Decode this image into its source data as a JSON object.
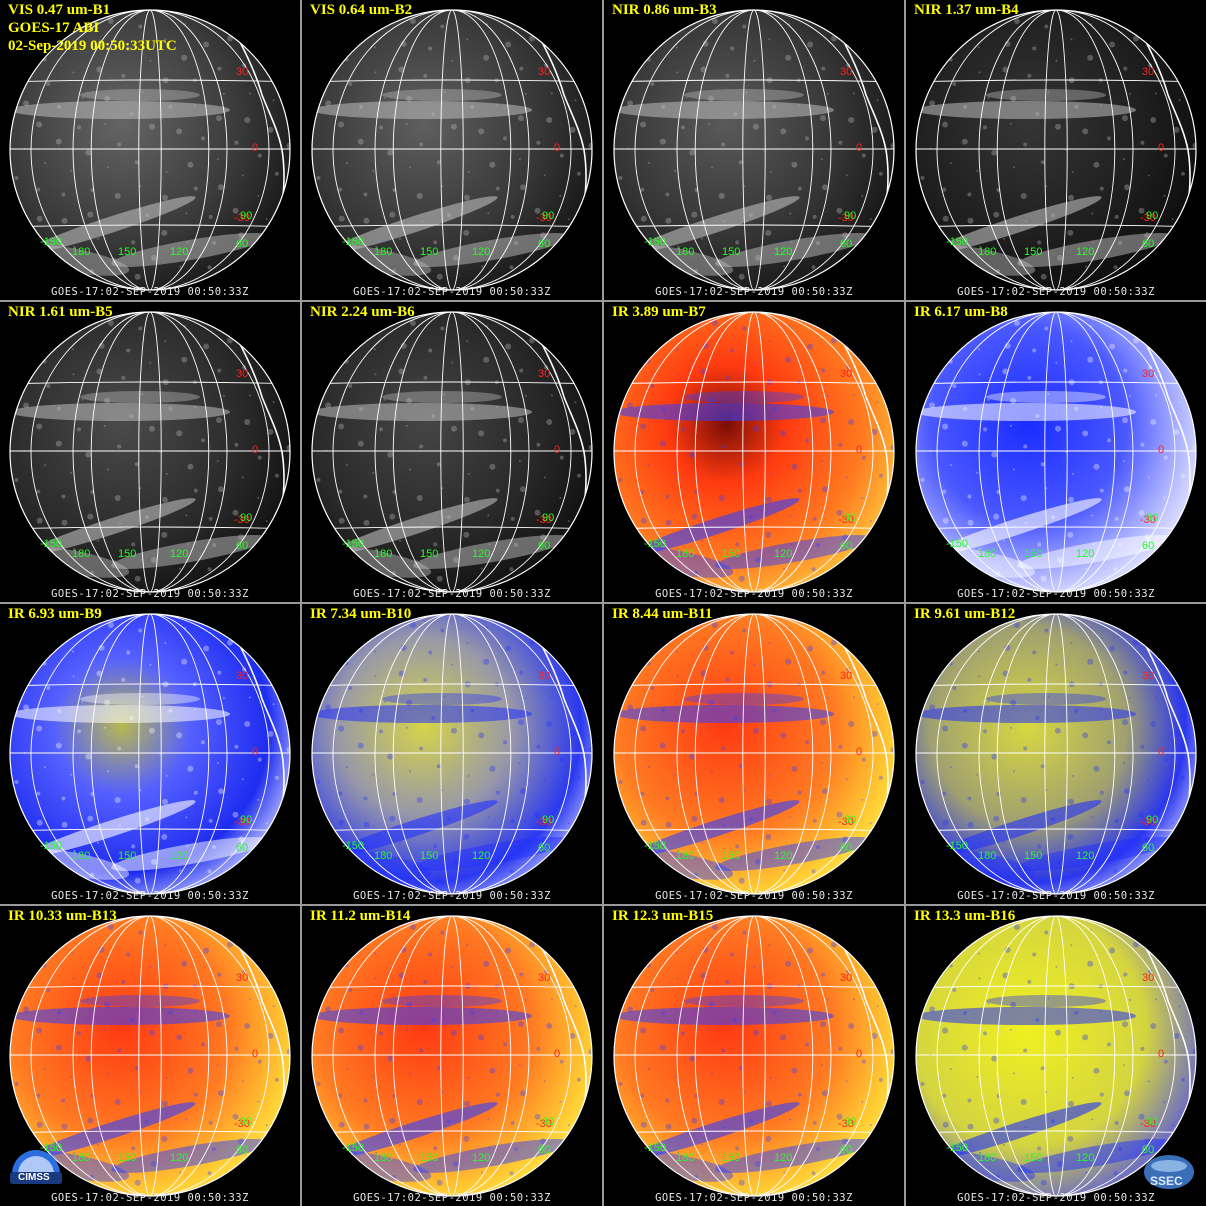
{
  "header": {
    "satellite": "GOES-17 ABI",
    "datetime": "02-Sep-2019 00:50:33UTC"
  },
  "stamp": "GOES-17:02-SEP-2019 00:50:33Z",
  "gridlines": {
    "lat_labels": [
      "30",
      "0",
      "-30"
    ],
    "lon_labels": [
      "-150",
      "180",
      "150",
      "120",
      "60",
      "90"
    ]
  },
  "panels": [
    {
      "label": "VIS 0.47 um-B1",
      "scheme": "gray",
      "brightness": 0.95
    },
    {
      "label": "VIS 0.64 um-B2",
      "scheme": "gray",
      "brightness": 0.9
    },
    {
      "label": "NIR 0.86 um-B3",
      "scheme": "gray",
      "brightness": 0.85
    },
    {
      "label": "NIR 1.37 um-B4",
      "scheme": "gray",
      "brightness": 0.5
    },
    {
      "label": "NIR 1.61 um-B5",
      "scheme": "gray",
      "brightness": 0.7
    },
    {
      "label": "NIR 2.24 um-B6",
      "scheme": "gray",
      "brightness": 0.65
    },
    {
      "label": "IR 3.89 um-B7",
      "scheme": "hot",
      "brightness": 1
    },
    {
      "label": "IR 6.17 um-B8",
      "scheme": "wv-white",
      "brightness": 1
    },
    {
      "label": "IR 6.93 um-B9",
      "scheme": "wv-blue",
      "brightness": 1
    },
    {
      "label": "IR 7.34 um-B10",
      "scheme": "wv-yellow",
      "brightness": 1
    },
    {
      "label": "IR 8.44 um-B11",
      "scheme": "hot-orange",
      "brightness": 1
    },
    {
      "label": "IR 9.61 um-B12",
      "scheme": "yellow-blue",
      "brightness": 1
    },
    {
      "label": "IR 10.33 um-B13",
      "scheme": "hot-orange",
      "brightness": 1
    },
    {
      "label": "IR 11.2 um-B14",
      "scheme": "hot-orange",
      "brightness": 1
    },
    {
      "label": "IR 12.3 um-B15",
      "scheme": "hot-orange",
      "brightness": 1
    },
    {
      "label": "IR 13.3 um-B16",
      "scheme": "yellow",
      "brightness": 1
    }
  ],
  "logos": {
    "left": "CIMSS",
    "right": "SSEC"
  },
  "colors": {
    "title": "#ffff00",
    "lat_label": "#ff2020",
    "lon_label": "#20ff20",
    "grid": "#ffffff"
  }
}
